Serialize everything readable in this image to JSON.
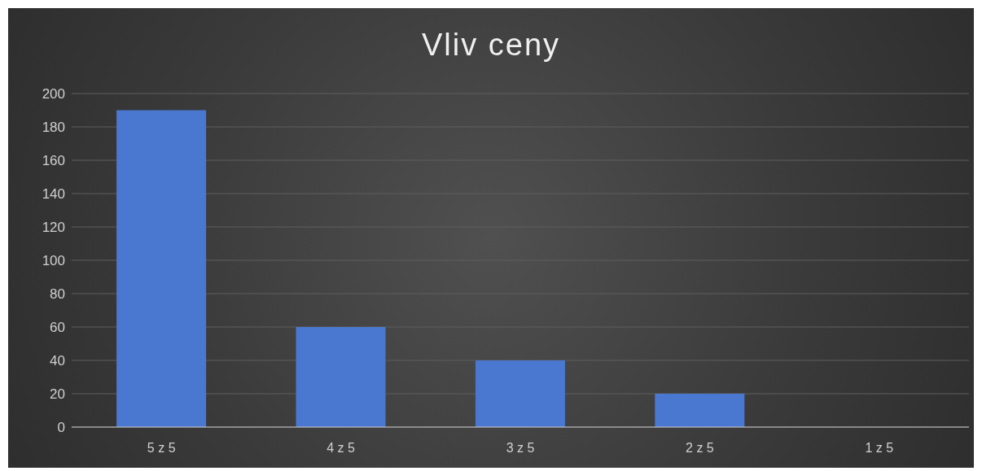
{
  "chart_data": {
    "type": "bar",
    "title": "Vliv ceny",
    "categories": [
      "5 z 5",
      "4 z 5",
      "3 z 5",
      "2 z 5",
      "1 z 5"
    ],
    "values": [
      190,
      60,
      40,
      20,
      0
    ],
    "color": "#4a78d0",
    "ylim": [
      0,
      200
    ],
    "yticks": [
      0,
      20,
      40,
      60,
      80,
      100,
      120,
      140,
      160,
      180,
      200
    ],
    "grid": "y"
  }
}
